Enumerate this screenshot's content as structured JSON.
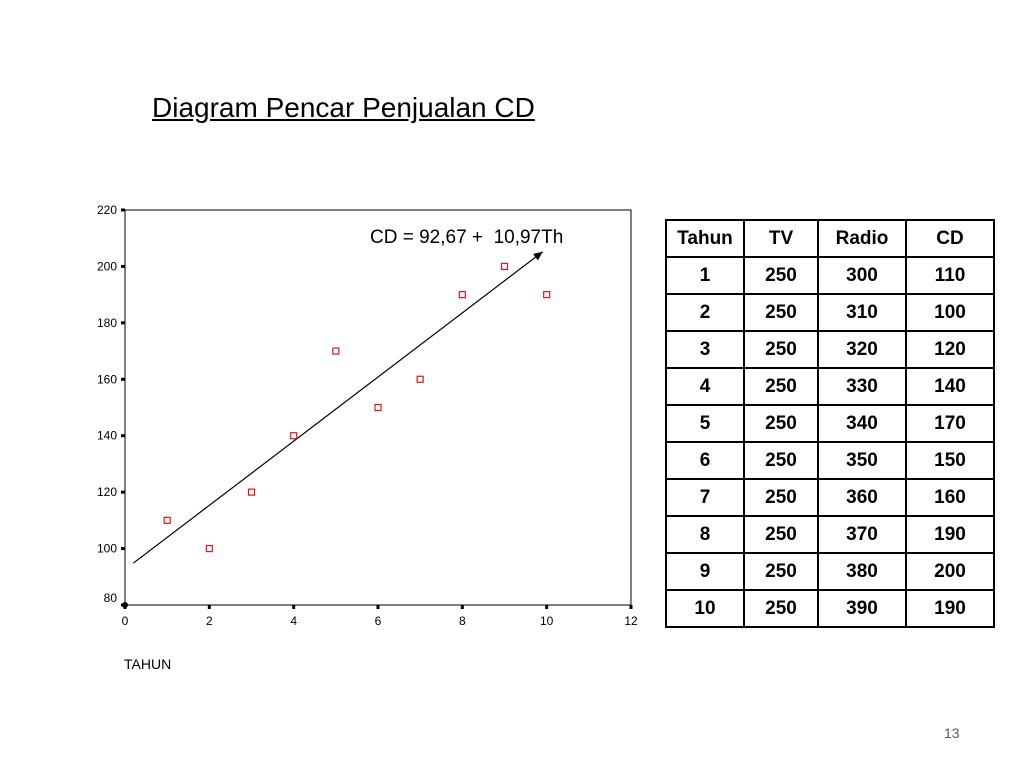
{
  "slide": {
    "title": "Diagram Pencar Penjualan CD",
    "page_number": "13"
  },
  "chart_data": {
    "type": "scatter",
    "title": "",
    "xlabel": "TAHUN",
    "ylabel": "",
    "xlim": [
      0,
      12
    ],
    "ylim": [
      80,
      220
    ],
    "x_ticks": [
      0,
      2,
      4,
      6,
      8,
      10,
      12
    ],
    "y_ticks": [
      80,
      100,
      120,
      140,
      160,
      180,
      200,
      220
    ],
    "points": [
      {
        "x": 1,
        "y": 110
      },
      {
        "x": 2,
        "y": 100
      },
      {
        "x": 3,
        "y": 120
      },
      {
        "x": 4,
        "y": 140
      },
      {
        "x": 5,
        "y": 170
      },
      {
        "x": 6,
        "y": 150
      },
      {
        "x": 7,
        "y": 160
      },
      {
        "x": 8,
        "y": 190
      },
      {
        "x": 9,
        "y": 200
      },
      {
        "x": 10,
        "y": 190
      }
    ],
    "marker_color": "#e8141c",
    "grid": false,
    "trendline": {
      "intercept": 92.67,
      "slope": 10.97,
      "x_range": [
        0.2,
        10
      ],
      "label": "CD = 92,67 +  10,97Th"
    }
  },
  "table": {
    "headers": [
      "Tahun",
      "TV",
      "Radio",
      "CD"
    ],
    "rows": [
      [
        "1",
        "250",
        "300",
        "110"
      ],
      [
        "2",
        "250",
        "310",
        "100"
      ],
      [
        "3",
        "250",
        "320",
        "120"
      ],
      [
        "4",
        "250",
        "330",
        "140"
      ],
      [
        "5",
        "250",
        "340",
        "170"
      ],
      [
        "6",
        "250",
        "350",
        "150"
      ],
      [
        "7",
        "250",
        "360",
        "160"
      ],
      [
        "8",
        "250",
        "370",
        "190"
      ],
      [
        "9",
        "250",
        "380",
        "200"
      ],
      [
        "10",
        "250",
        "390",
        "190"
      ]
    ]
  }
}
